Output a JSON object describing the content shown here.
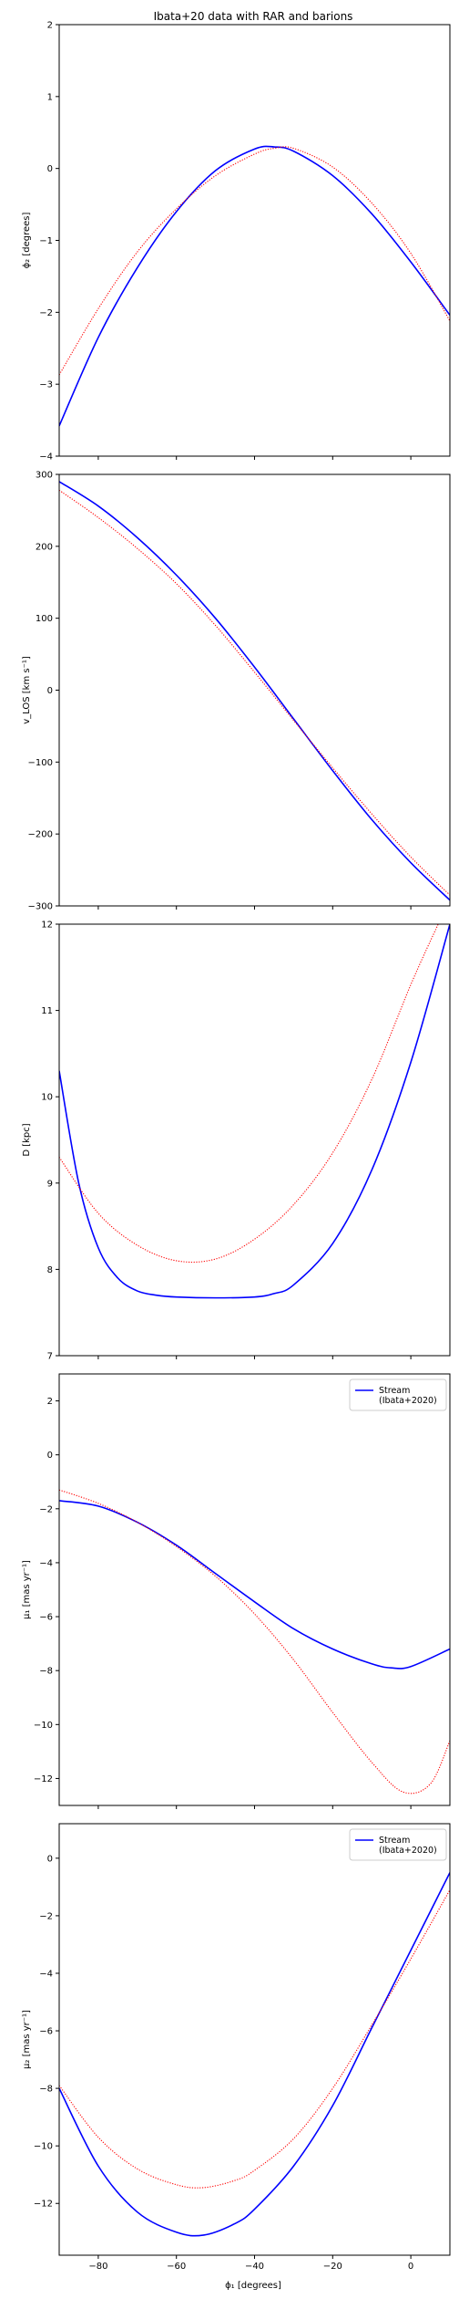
{
  "title": "Ibata+20 data with RAR and barions",
  "colors": {
    "model": "#0000ff",
    "data": "#ff0000"
  },
  "x_axis": {
    "label": "ϕ₁ [degrees]",
    "lim": [
      -90,
      10
    ],
    "ticks": [
      -80,
      -60,
      -40,
      -20,
      0
    ]
  },
  "chart_data": [
    {
      "type": "line",
      "ylabel": "ϕ₂ [degrees]",
      "xlim": [
        -90,
        10
      ],
      "ylim": [
        -4,
        2
      ],
      "yticks": [
        -4,
        -3,
        -2,
        -1,
        0,
        1,
        2
      ],
      "legend": null,
      "series": [
        {
          "role": "model",
          "style": "solid",
          "x": [
            -90,
            -80,
            -70,
            -60,
            -50,
            -40,
            -35,
            -30,
            -20,
            -10,
            0,
            10
          ],
          "y": [
            -3.58,
            -2.35,
            -1.38,
            -0.6,
            -0.03,
            0.27,
            0.3,
            0.24,
            -0.1,
            -0.63,
            -1.3,
            -2.04
          ]
        },
        {
          "role": "data",
          "style": "dotted",
          "x": [
            -90,
            -80,
            -70,
            -60,
            -50,
            -40,
            -35,
            -30,
            -20,
            -10,
            0,
            10
          ],
          "y": [
            -2.87,
            -1.95,
            -1.16,
            -0.56,
            -0.1,
            0.2,
            0.28,
            0.28,
            0.02,
            -0.48,
            -1.18,
            -2.12
          ]
        }
      ]
    },
    {
      "type": "line",
      "ylabel": "v_LOS [km s⁻¹]",
      "xlim": [
        -90,
        10
      ],
      "ylim": [
        -300,
        300
      ],
      "yticks": [
        -300,
        -200,
        -100,
        0,
        100,
        200,
        300
      ],
      "legend": null,
      "series": [
        {
          "role": "model",
          "style": "solid",
          "x": [
            -90,
            -80,
            -70,
            -60,
            -50,
            -40,
            -30,
            -20,
            -10,
            0,
            10
          ],
          "y": [
            290,
            256,
            212,
            160,
            100,
            32,
            -40,
            -112,
            -180,
            -240,
            -292
          ]
        },
        {
          "role": "data",
          "style": "dotted",
          "x": [
            -90,
            -80,
            -70,
            -60,
            -50,
            -40,
            -30,
            -20,
            -10,
            0,
            10
          ],
          "y": [
            278,
            240,
            197,
            148,
            90,
            25,
            -42,
            -108,
            -172,
            -232,
            -285
          ]
        }
      ]
    },
    {
      "type": "line",
      "ylabel": "D [kpc]",
      "xlim": [
        -90,
        10
      ],
      "ylim": [
        7,
        12
      ],
      "yticks": [
        7,
        8,
        9,
        10,
        11,
        12
      ],
      "legend": null,
      "series": [
        {
          "role": "model",
          "style": "solid",
          "x": [
            -90,
            -85,
            -80,
            -75,
            -70,
            -65,
            -60,
            -50,
            -40,
            -35,
            -30,
            -20,
            -10,
            0,
            10
          ],
          "y": [
            10.3,
            9.0,
            8.25,
            7.9,
            7.75,
            7.7,
            7.68,
            7.67,
            7.68,
            7.72,
            7.82,
            8.3,
            9.15,
            10.4,
            12.0
          ]
        },
        {
          "role": "data",
          "style": "dotted",
          "x": [
            -90,
            -80,
            -70,
            -60,
            -50,
            -40,
            -30,
            -20,
            -10,
            0,
            7
          ],
          "y": [
            9.3,
            8.65,
            8.28,
            8.1,
            8.12,
            8.35,
            8.75,
            9.35,
            10.2,
            11.3,
            12.0
          ]
        }
      ]
    },
    {
      "type": "line",
      "ylabel": "μ₁ [mas yr⁻¹]",
      "xlim": [
        -90,
        10
      ],
      "ylim": [
        -13,
        3
      ],
      "yticks": [
        -12,
        -10,
        -8,
        -6,
        -4,
        -2,
        0,
        2
      ],
      "legend": {
        "location": "top-right",
        "label": "Stream\n(Ibata+2020)"
      },
      "series": [
        {
          "role": "model",
          "style": "solid",
          "x": [
            -90,
            -80,
            -70,
            -60,
            -50,
            -40,
            -30,
            -20,
            -10,
            -5,
            0,
            10
          ],
          "y": [
            -1.7,
            -1.9,
            -2.5,
            -3.35,
            -4.4,
            -5.45,
            -6.45,
            -7.2,
            -7.75,
            -7.9,
            -7.85,
            -7.2
          ]
        },
        {
          "role": "data",
          "style": "dotted",
          "x": [
            -90,
            -80,
            -70,
            -60,
            -50,
            -40,
            -30,
            -20,
            -10,
            -2,
            5,
            10
          ],
          "y": [
            -1.3,
            -1.8,
            -2.5,
            -3.4,
            -4.5,
            -5.9,
            -7.6,
            -9.55,
            -11.4,
            -12.5,
            -12.2,
            -10.6
          ]
        }
      ]
    },
    {
      "type": "line",
      "ylabel": "μ₂ [mas yr⁻¹]",
      "xlim": [
        -90,
        10
      ],
      "ylim": [
        -13.8,
        1.2
      ],
      "yticks": [
        -12,
        -10,
        -8,
        -6,
        -4,
        -2,
        0
      ],
      "legend": {
        "location": "top-right",
        "label": "Stream\n(Ibata+2020)"
      },
      "series": [
        {
          "role": "model",
          "style": "solid",
          "x": [
            -90,
            -80,
            -70,
            -60,
            -53,
            -45,
            -40,
            -30,
            -20,
            -10,
            0,
            10
          ],
          "y": [
            -8.0,
            -10.7,
            -12.3,
            -13.0,
            -13.1,
            -12.7,
            -12.2,
            -10.7,
            -8.6,
            -5.9,
            -3.2,
            -0.5
          ]
        },
        {
          "role": "data",
          "style": "dotted",
          "x": [
            -90,
            -80,
            -70,
            -60,
            -53,
            -45,
            -40,
            -30,
            -20,
            -10,
            0,
            10
          ],
          "y": [
            -7.9,
            -9.7,
            -10.8,
            -11.35,
            -11.45,
            -11.2,
            -10.85,
            -9.75,
            -8.0,
            -5.8,
            -3.5,
            -1.1
          ]
        }
      ]
    }
  ]
}
